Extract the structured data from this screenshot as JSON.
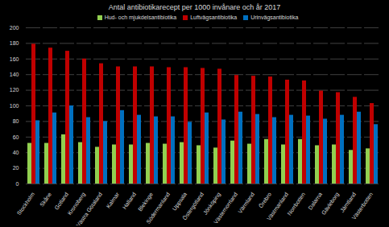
{
  "chart_data": {
    "type": "bar",
    "title": "Antal antibiotikarecept per 1000 invånare och år 2017",
    "categories": [
      "Stockholm",
      "Skåne",
      "Gotland",
      "Kronoberg",
      "Västra Götaland",
      "Kalmar",
      "Halland",
      "Blekinge",
      "Södermanland",
      "Uppsala",
      "Östergötland",
      "Jönköping",
      "Västernorrland",
      "Värmland",
      "Örebro",
      "Västmanland",
      "Norrbotten",
      "Dalarna",
      "Gävleborg",
      "Jämtland",
      "Västerbotten"
    ],
    "series": [
      {
        "name": "Hud- och mjukdelsantibiotika",
        "color": "#92d050",
        "values": [
          52,
          52,
          63,
          53,
          47,
          50,
          50,
          52,
          51,
          53,
          49,
          46,
          55,
          51,
          57,
          50,
          57,
          49,
          50,
          43,
          45
        ]
      },
      {
        "name": "Luftvägsantibiotika",
        "color": "#c00000",
        "values": [
          179,
          174,
          170,
          160,
          154,
          150,
          150,
          150,
          149,
          149,
          148,
          147,
          139,
          138,
          137,
          133,
          132,
          119,
          117,
          111,
          103
        ]
      },
      {
        "name": "Urinvägsantibiotika",
        "color": "#0070c0",
        "values": [
          81,
          91,
          100,
          85,
          80,
          94,
          88,
          86,
          86,
          79,
          91,
          82,
          92,
          89,
          85,
          88,
          87,
          83,
          88,
          92,
          76
        ]
      }
    ],
    "ylim": [
      0,
      200
    ],
    "yticks": [
      0,
      20,
      40,
      60,
      80,
      100,
      120,
      140,
      160,
      180,
      200
    ],
    "grid": true,
    "legend": "top"
  }
}
